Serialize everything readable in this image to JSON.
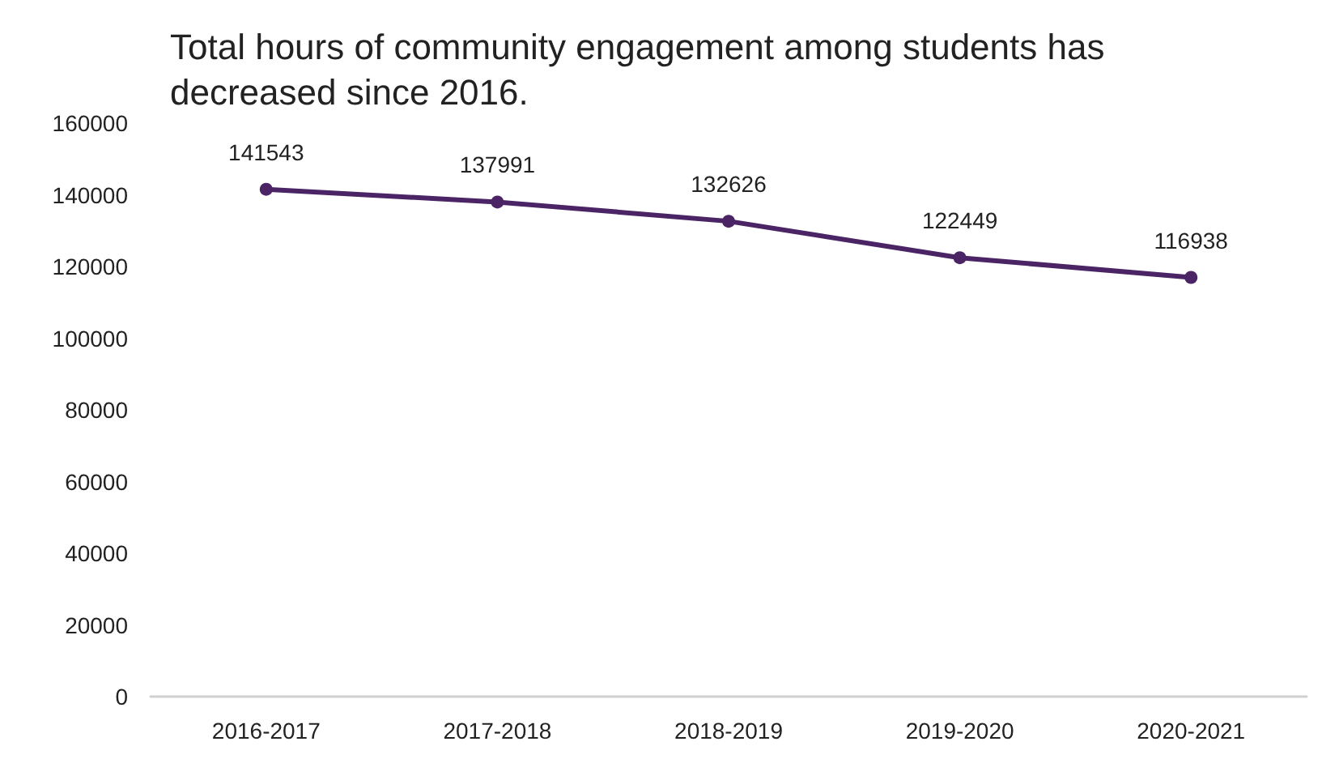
{
  "chart_data": {
    "type": "line",
    "title": "Total hours of community engagement among students has decreased since 2016.",
    "categories": [
      "2016-2017",
      "2017-2018",
      "2018-2019",
      "2019-2020",
      "2020-2021"
    ],
    "series": [
      {
        "color": "#4b2466",
        "values": [
          141543,
          137991,
          132626,
          122449,
          116938
        ]
      }
    ],
    "ylim": [
      0,
      160000
    ],
    "yticks": [
      0,
      20000,
      40000,
      60000,
      80000,
      100000,
      120000,
      140000,
      160000
    ],
    "grid": false,
    "marker": "circle",
    "line_style": "solid",
    "data_labels": true
  }
}
